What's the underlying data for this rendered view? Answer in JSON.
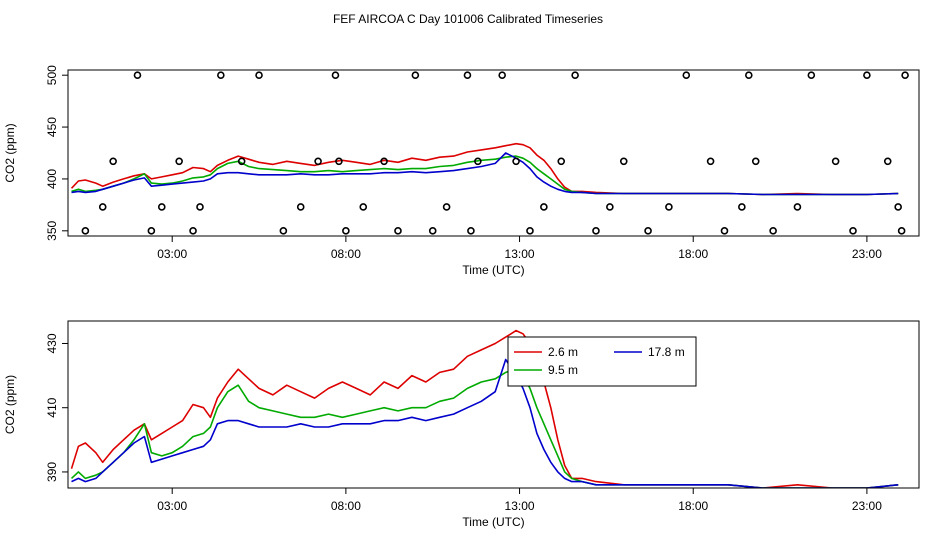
{
  "title": "FEF AIRCOA C  Day 101006  Calibrated Timeseries",
  "chart_data": [
    {
      "type": "line",
      "xlabel": "Time (UTC)",
      "ylabel": "CO2 (ppm)",
      "xlim": [
        0.0,
        24.5
      ],
      "ylim": [
        345,
        505
      ],
      "xticks": [
        3,
        8,
        13,
        18,
        23
      ],
      "xtick_labels": [
        "03:00",
        "08:00",
        "13:00",
        "18:00",
        "23:00"
      ],
      "yticks": [
        350,
        400,
        450,
        500
      ],
      "ytick_labels": [
        "350",
        "400",
        "450",
        "500"
      ],
      "series": [
        {
          "color": "#dd0000",
          "x": [
            0.1,
            0.3,
            0.5,
            0.8,
            1.0,
            1.3,
            1.6,
            1.9,
            2.2,
            2.4,
            2.7,
            3.0,
            3.3,
            3.6,
            3.9,
            4.1,
            4.3,
            4.6,
            4.9,
            5.2,
            5.5,
            5.9,
            6.3,
            6.7,
            7.1,
            7.5,
            7.9,
            8.3,
            8.7,
            9.1,
            9.5,
            9.9,
            10.3,
            10.7,
            11.1,
            11.5,
            11.9,
            12.3,
            12.6,
            12.9,
            13.1,
            13.3,
            13.5,
            13.7,
            13.9,
            14.1,
            14.3,
            14.5,
            14.8,
            15.2,
            16,
            17,
            18,
            19,
            20,
            21,
            22,
            23,
            23.9
          ],
          "y": [
            391,
            398,
            399,
            396,
            393,
            397,
            400,
            403,
            405,
            400,
            402,
            404,
            406,
            411,
            410,
            407,
            413,
            418,
            422,
            419,
            416,
            414,
            417,
            415,
            413,
            416,
            418,
            416,
            414,
            418,
            416,
            420,
            418,
            421,
            422,
            426,
            428,
            430,
            432,
            434,
            433,
            430,
            423,
            418,
            410,
            400,
            392,
            388,
            388,
            387,
            386,
            386,
            386,
            386,
            385,
            386,
            385,
            385,
            386
          ]
        },
        {
          "color": "#00aa00",
          "x": [
            0.1,
            0.3,
            0.5,
            0.8,
            1.0,
            1.3,
            1.6,
            1.9,
            2.2,
            2.4,
            2.7,
            3.0,
            3.3,
            3.6,
            3.9,
            4.1,
            4.3,
            4.6,
            4.9,
            5.2,
            5.5,
            5.9,
            6.3,
            6.7,
            7.1,
            7.5,
            7.9,
            8.3,
            8.7,
            9.1,
            9.5,
            9.9,
            10.3,
            10.7,
            11.1,
            11.5,
            11.9,
            12.3,
            12.6,
            12.9,
            13.1,
            13.3,
            13.5,
            13.7,
            13.9,
            14.1,
            14.3,
            14.5,
            14.8,
            15.2,
            16,
            17,
            18,
            19,
            20,
            21,
            22,
            23,
            23.9
          ],
          "y": [
            388,
            390,
            388,
            389,
            390,
            393,
            396,
            400,
            405,
            396,
            395,
            396,
            398,
            401,
            402,
            404,
            410,
            415,
            417,
            412,
            410,
            409,
            408,
            407,
            407,
            408,
            407,
            408,
            409,
            410,
            409,
            410,
            410,
            412,
            413,
            416,
            418,
            419,
            421,
            422,
            420,
            416,
            410,
            405,
            400,
            395,
            390,
            388,
            387,
            386,
            386,
            386,
            386,
            386,
            385,
            385,
            385,
            385,
            386
          ]
        },
        {
          "color": "#0000cc",
          "x": [
            0.1,
            0.3,
            0.5,
            0.8,
            1.0,
            1.3,
            1.6,
            1.9,
            2.2,
            2.4,
            2.7,
            3.0,
            3.3,
            3.6,
            3.9,
            4.1,
            4.3,
            4.6,
            4.9,
            5.2,
            5.5,
            5.9,
            6.3,
            6.7,
            7.1,
            7.5,
            7.9,
            8.3,
            8.7,
            9.1,
            9.5,
            9.9,
            10.3,
            10.7,
            11.1,
            11.5,
            11.9,
            12.3,
            12.6,
            12.9,
            13.1,
            13.3,
            13.5,
            13.7,
            13.9,
            14.1,
            14.3,
            14.5,
            14.8,
            15.2,
            16,
            17,
            18,
            19,
            20,
            21,
            22,
            23,
            23.9
          ],
          "y": [
            387,
            388,
            387,
            388,
            390,
            393,
            396,
            399,
            401,
            393,
            394,
            395,
            396,
            397,
            398,
            400,
            405,
            406,
            406,
            405,
            404,
            404,
            404,
            405,
            404,
            404,
            405,
            405,
            405,
            406,
            406,
            407,
            406,
            407,
            408,
            410,
            412,
            415,
            425,
            420,
            416,
            410,
            402,
            397,
            393,
            390,
            388,
            387,
            387,
            386,
            386,
            386,
            386,
            386,
            385,
            385,
            385,
            385,
            386
          ]
        },
        {
          "type": "scatter",
          "marker": "circle-open",
          "x": [
            0.5,
            1.0,
            1.3,
            2.0,
            2.4,
            2.7,
            3.2,
            3.6,
            3.8,
            4.4,
            5.0,
            5.5,
            6.2,
            6.7,
            7.2,
            7.7,
            7.8,
            8.0,
            8.5,
            9.1,
            9.5,
            10.0,
            10.5,
            10.9,
            11.5,
            11.6,
            11.8,
            12.5,
            12.9,
            13.3,
            13.7,
            14.2,
            14.6,
            15.2,
            15.6,
            16.0,
            16.7,
            17.3,
            17.8,
            18.5,
            18.9,
            19.4,
            19.6,
            19.8,
            20.3,
            21.0,
            21.4,
            22.1,
            22.6,
            23.0,
            23.6,
            23.9,
            24.0,
            24.1
          ],
          "y": [
            350,
            373,
            417,
            500,
            350,
            373,
            417,
            350,
            373,
            500,
            417,
            500,
            350,
            373,
            417,
            500,
            417,
            350,
            373,
            417,
            350,
            500,
            350,
            373,
            500,
            350,
            417,
            500,
            417,
            350,
            373,
            417,
            500,
            350,
            373,
            417,
            350,
            373,
            500,
            417,
            350,
            373,
            500,
            417,
            350,
            373,
            500,
            417,
            350,
            500,
            417,
            373,
            350,
            500
          ]
        }
      ]
    },
    {
      "type": "line",
      "xlabel": "Time (UTC)",
      "ylabel": "CO2 (ppm)",
      "xlim": [
        0.0,
        24.5
      ],
      "ylim": [
        385,
        437
      ],
      "xticks": [
        3,
        8,
        13,
        18,
        23
      ],
      "xtick_labels": [
        "03:00",
        "08:00",
        "13:00",
        "18:00",
        "23:00"
      ],
      "yticks": [
        390,
        410,
        430
      ],
      "ytick_labels": [
        "390",
        "410",
        "430"
      ],
      "legend": {
        "position": "top-right",
        "entries": [
          {
            "label": "2.6 m",
            "color": "#dd0000"
          },
          {
            "label": "17.8 m",
            "color": "#0000cc"
          },
          {
            "label": "9.5 m",
            "color": "#00aa00"
          }
        ]
      },
      "series": [
        {
          "name": "2.6 m",
          "color": "#dd0000",
          "x": [
            0.1,
            0.3,
            0.5,
            0.8,
            1.0,
            1.3,
            1.6,
            1.9,
            2.2,
            2.4,
            2.7,
            3.0,
            3.3,
            3.6,
            3.9,
            4.1,
            4.3,
            4.6,
            4.9,
            5.2,
            5.5,
            5.9,
            6.3,
            6.7,
            7.1,
            7.5,
            7.9,
            8.3,
            8.7,
            9.1,
            9.5,
            9.9,
            10.3,
            10.7,
            11.1,
            11.5,
            11.9,
            12.3,
            12.6,
            12.9,
            13.1,
            13.3,
            13.5,
            13.7,
            13.9,
            14.1,
            14.3,
            14.5,
            14.8,
            15.2,
            16,
            17,
            18,
            19,
            20,
            21,
            22,
            23,
            23.9
          ],
          "y": [
            391,
            398,
            399,
            396,
            393,
            397,
            400,
            403,
            405,
            400,
            402,
            404,
            406,
            411,
            410,
            407,
            413,
            418,
            422,
            419,
            416,
            414,
            417,
            415,
            413,
            416,
            418,
            416,
            414,
            418,
            416,
            420,
            418,
            421,
            422,
            426,
            428,
            430,
            432,
            434,
            433,
            430,
            423,
            418,
            410,
            400,
            392,
            388,
            388,
            387,
            386,
            386,
            386,
            386,
            385,
            386,
            385,
            385,
            386
          ]
        },
        {
          "name": "9.5 m",
          "color": "#00aa00",
          "x": [
            0.1,
            0.3,
            0.5,
            0.8,
            1.0,
            1.3,
            1.6,
            1.9,
            2.2,
            2.4,
            2.7,
            3.0,
            3.3,
            3.6,
            3.9,
            4.1,
            4.3,
            4.6,
            4.9,
            5.2,
            5.5,
            5.9,
            6.3,
            6.7,
            7.1,
            7.5,
            7.9,
            8.3,
            8.7,
            9.1,
            9.5,
            9.9,
            10.3,
            10.7,
            11.1,
            11.5,
            11.9,
            12.3,
            12.6,
            12.9,
            13.1,
            13.3,
            13.5,
            13.7,
            13.9,
            14.1,
            14.3,
            14.5,
            14.8,
            15.2,
            16,
            17,
            18,
            19,
            20,
            21,
            22,
            23,
            23.9
          ],
          "y": [
            388,
            390,
            388,
            389,
            390,
            393,
            396,
            400,
            405,
            396,
            395,
            396,
            398,
            401,
            402,
            404,
            410,
            415,
            417,
            412,
            410,
            409,
            408,
            407,
            407,
            408,
            407,
            408,
            409,
            410,
            409,
            410,
            410,
            412,
            413,
            416,
            418,
            419,
            421,
            422,
            420,
            416,
            410,
            405,
            400,
            395,
            390,
            388,
            387,
            386,
            386,
            386,
            386,
            386,
            385,
            385,
            385,
            385,
            386
          ]
        },
        {
          "name": "17.8 m",
          "color": "#0000cc",
          "x": [
            0.1,
            0.3,
            0.5,
            0.8,
            1.0,
            1.3,
            1.6,
            1.9,
            2.2,
            2.4,
            2.7,
            3.0,
            3.3,
            3.6,
            3.9,
            4.1,
            4.3,
            4.6,
            4.9,
            5.2,
            5.5,
            5.9,
            6.3,
            6.7,
            7.1,
            7.5,
            7.9,
            8.3,
            8.7,
            9.1,
            9.5,
            9.9,
            10.3,
            10.7,
            11.1,
            11.5,
            11.9,
            12.3,
            12.6,
            12.9,
            13.1,
            13.3,
            13.5,
            13.7,
            13.9,
            14.1,
            14.3,
            14.5,
            14.8,
            15.2,
            16,
            17,
            18,
            19,
            20,
            21,
            22,
            23,
            23.9
          ],
          "y": [
            387,
            388,
            387,
            388,
            390,
            393,
            396,
            399,
            401,
            393,
            394,
            395,
            396,
            397,
            398,
            400,
            405,
            406,
            406,
            405,
            404,
            404,
            404,
            405,
            404,
            404,
            405,
            405,
            405,
            406,
            406,
            407,
            406,
            407,
            408,
            410,
            412,
            415,
            425,
            420,
            416,
            410,
            402,
            397,
            393,
            390,
            388,
            387,
            387,
            386,
            386,
            386,
            386,
            386,
            385,
            385,
            385,
            385,
            386
          ]
        }
      ]
    }
  ]
}
